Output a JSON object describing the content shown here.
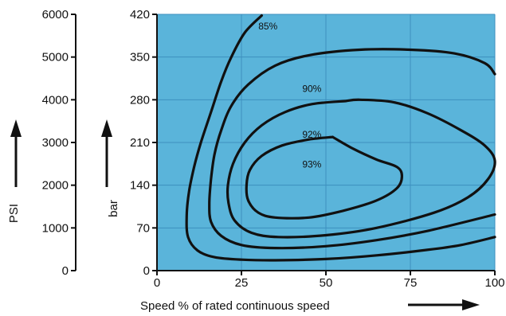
{
  "chart_data": {
    "type": "contour",
    "title": "",
    "xlabel": "Speed % of rated continuous speed",
    "ylabel": "bar",
    "secondary_ylabel": "PSI",
    "xlim": [
      0,
      100
    ],
    "ylim": [
      0,
      420
    ],
    "secondary_ylim": [
      0,
      6000
    ],
    "x_ticks": [
      0,
      25,
      50,
      75,
      100
    ],
    "y_ticks": [
      0,
      70,
      140,
      210,
      280,
      350,
      420
    ],
    "secondary_y_ticks": [
      0,
      1000,
      2000,
      3000,
      4000,
      5000,
      6000
    ],
    "grid": true,
    "background_color": "#5ab4da",
    "grid_color": "#3d8fbf",
    "line_color": "#111111",
    "series": [
      {
        "name": "85%",
        "label_at": [
          30,
          395
        ],
        "points": [
          [
            31,
            418
          ],
          [
            26,
            390
          ],
          [
            22,
            350
          ],
          [
            19,
            310
          ],
          [
            16,
            260
          ],
          [
            13,
            210
          ],
          [
            11,
            170
          ],
          [
            9.5,
            130
          ],
          [
            8.8,
            90
          ],
          [
            9.2,
            55
          ],
          [
            12,
            33
          ],
          [
            17,
            22
          ],
          [
            25,
            18
          ],
          [
            35,
            17
          ],
          [
            50,
            19
          ],
          [
            65,
            25
          ],
          [
            80,
            34
          ],
          [
            90,
            42
          ],
          [
            100,
            55
          ]
        ]
      },
      {
        "name": "90%",
        "label_at": [
          43,
          293
        ],
        "points": [
          [
            100,
            322
          ],
          [
            97,
            340
          ],
          [
            88,
            356
          ],
          [
            75,
            362
          ],
          [
            60,
            362
          ],
          [
            45,
            353
          ],
          [
            35,
            336
          ],
          [
            27,
            305
          ],
          [
            22,
            270
          ],
          [
            19,
            230
          ],
          [
            17,
            190
          ],
          [
            16,
            150
          ],
          [
            15.5,
            110
          ],
          [
            16,
            80
          ],
          [
            19,
            57
          ],
          [
            25,
            42
          ],
          [
            35,
            37
          ],
          [
            50,
            40
          ],
          [
            65,
            50
          ],
          [
            80,
            65
          ],
          [
            100,
            92
          ]
        ]
      },
      {
        "name": "92%",
        "label_at": [
          43,
          218
        ],
        "points": [
          [
            56,
            278
          ],
          [
            46,
            273
          ],
          [
            38,
            260
          ],
          [
            31,
            238
          ],
          [
            26,
            210
          ],
          [
            22.5,
            175
          ],
          [
            21,
            140
          ],
          [
            21.2,
            110
          ],
          [
            23,
            82
          ],
          [
            28,
            62
          ],
          [
            36,
            55
          ],
          [
            50,
            58
          ],
          [
            65,
            70
          ],
          [
            82,
            95
          ],
          [
            92,
            120
          ],
          [
            98,
            150
          ],
          [
            100,
            180
          ],
          [
            97,
            205
          ],
          [
            90,
            230
          ],
          [
            80,
            258
          ],
          [
            70,
            276
          ],
          [
            60,
            280
          ],
          [
            56,
            278
          ]
        ]
      },
      {
        "name": "93%",
        "label_at": [
          43,
          169
        ],
        "points": [
          [
            52,
            219
          ],
          [
            45,
            215
          ],
          [
            37,
            205
          ],
          [
            31,
            188
          ],
          [
            27.5,
            165
          ],
          [
            26.5,
            140
          ],
          [
            27,
            115
          ],
          [
            30,
            95
          ],
          [
            35,
            87
          ],
          [
            45,
            87
          ],
          [
            55,
            98
          ],
          [
            65,
            115
          ],
          [
            71,
            135
          ],
          [
            72.5,
            155
          ],
          [
            71,
            170
          ],
          [
            65,
            182
          ],
          [
            58,
            200
          ],
          [
            52,
            219
          ]
        ]
      }
    ]
  }
}
